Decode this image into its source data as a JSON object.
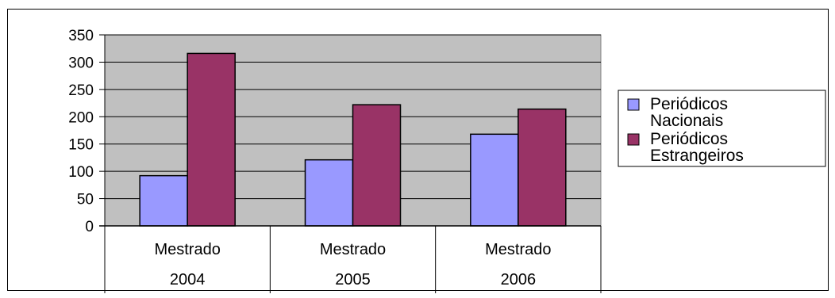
{
  "chart_data": {
    "type": "bar",
    "categories": [
      {
        "line1": "Mestrado",
        "line2": "2004"
      },
      {
        "line1": "Mestrado",
        "line2": "2005"
      },
      {
        "line1": "Mestrado",
        "line2": "2006"
      }
    ],
    "series": [
      {
        "name_lines": [
          "Periódicos",
          "Nacionais"
        ],
        "color": "#9999ff",
        "values": [
          92,
          121,
          168
        ]
      },
      {
        "name_lines": [
          "Periódicos",
          "Estrangeiros"
        ],
        "color": "#993366",
        "values": [
          316,
          222,
          214
        ]
      }
    ],
    "y_ticks": [
      "0",
      "50",
      "100",
      "150",
      "200",
      "250",
      "300",
      "350"
    ],
    "ylim": [
      0,
      350
    ],
    "plot_background": "#c0c0c0",
    "grid": true,
    "legend_position": "right"
  }
}
